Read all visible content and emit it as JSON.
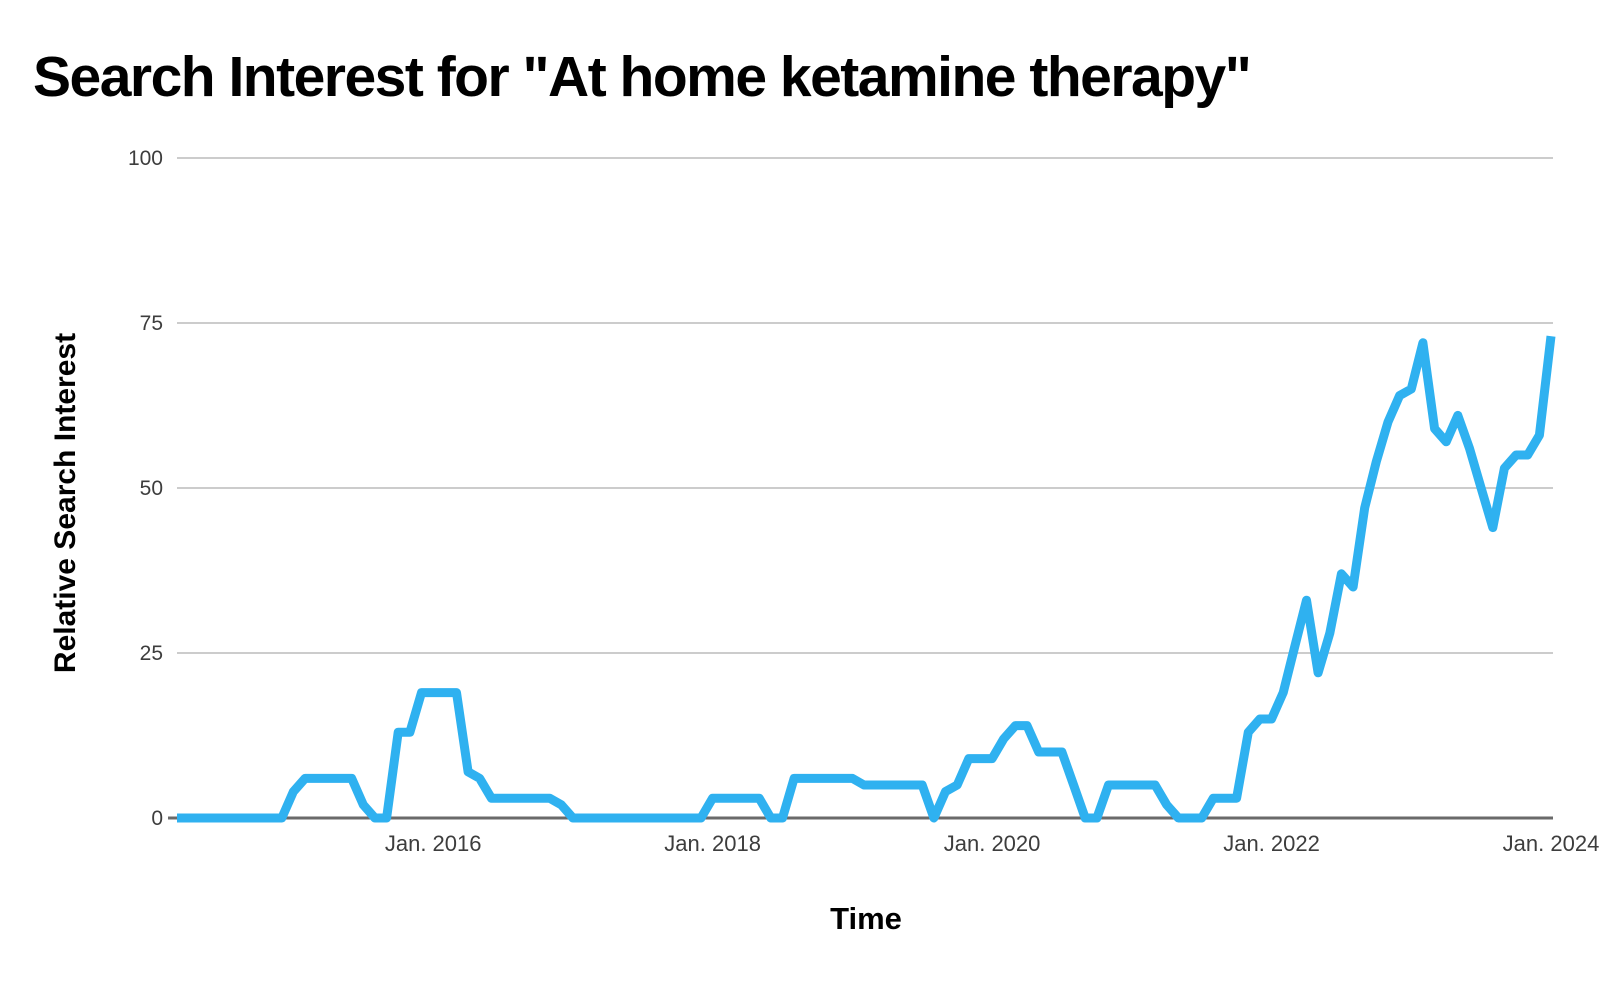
{
  "title": "Search Interest for \"At home ketamine therapy\"",
  "y_axis": {
    "label": "Relative Search Interest"
  },
  "x_axis": {
    "label": "Time"
  },
  "colors": {
    "line": "#2FB1F0",
    "gridline": "#cccccc",
    "axis_line": "#6a6a6a",
    "tick_label": "#3d3d3d",
    "text": "#000000",
    "background": "#ffffff"
  },
  "chart_data": {
    "type": "line",
    "title": "Search Interest for \"At home ketamine therapy\"",
    "xlabel": "Time",
    "ylabel": "Relative Search Interest",
    "ylim": [
      0,
      100
    ],
    "y_gridlines": [
      0,
      25,
      50,
      75,
      100
    ],
    "y_tick_labels": [
      "0",
      "25",
      "50",
      "75",
      "100"
    ],
    "grid": "horizontal-only",
    "legend": "none",
    "line_color": "#2FB1F0",
    "line_width": 9,
    "x_start": "2014-03",
    "x_end": "2024-01",
    "x_interval": "monthly",
    "x_ticks": [
      {
        "label": "Jan. 2016",
        "index": 22
      },
      {
        "label": "Jan. 2018",
        "index": 46
      },
      {
        "label": "Jan. 2020",
        "index": 70
      },
      {
        "label": "Jan. 2022",
        "index": 94
      },
      {
        "label": "Jan. 2024",
        "index": 118
      }
    ],
    "x": [
      "2014-03",
      "2014-04",
      "2014-05",
      "2014-06",
      "2014-07",
      "2014-08",
      "2014-09",
      "2014-10",
      "2014-11",
      "2014-12",
      "2015-01",
      "2015-02",
      "2015-03",
      "2015-04",
      "2015-05",
      "2015-06",
      "2015-07",
      "2015-08",
      "2015-09",
      "2015-10",
      "2015-11",
      "2015-12",
      "2016-01",
      "2016-02",
      "2016-03",
      "2016-04",
      "2016-05",
      "2016-06",
      "2016-07",
      "2016-08",
      "2016-09",
      "2016-10",
      "2016-11",
      "2016-12",
      "2017-01",
      "2017-02",
      "2017-03",
      "2017-04",
      "2017-05",
      "2017-06",
      "2017-07",
      "2017-08",
      "2017-09",
      "2017-10",
      "2017-11",
      "2017-12",
      "2018-01",
      "2018-02",
      "2018-03",
      "2018-04",
      "2018-05",
      "2018-06",
      "2018-07",
      "2018-08",
      "2018-09",
      "2018-10",
      "2018-11",
      "2018-12",
      "2019-01",
      "2019-02",
      "2019-03",
      "2019-04",
      "2019-05",
      "2019-06",
      "2019-07",
      "2019-08",
      "2019-09",
      "2019-10",
      "2019-11",
      "2019-12",
      "2020-01",
      "2020-02",
      "2020-03",
      "2020-04",
      "2020-05",
      "2020-06",
      "2020-07",
      "2020-08",
      "2020-09",
      "2020-10",
      "2020-11",
      "2020-12",
      "2021-01",
      "2021-02",
      "2021-03",
      "2021-04",
      "2021-05",
      "2021-06",
      "2021-07",
      "2021-08",
      "2021-09",
      "2021-10",
      "2021-11",
      "2021-12",
      "2022-01",
      "2022-02",
      "2022-03",
      "2022-04",
      "2022-05",
      "2022-06",
      "2022-07",
      "2022-08",
      "2022-09",
      "2022-10",
      "2022-11",
      "2022-12",
      "2023-01",
      "2023-02",
      "2023-03",
      "2023-04",
      "2023-05",
      "2023-06",
      "2023-07",
      "2023-08",
      "2023-09",
      "2023-10",
      "2023-11",
      "2023-12",
      "2024-01"
    ],
    "values": [
      0,
      0,
      0,
      0,
      0,
      0,
      0,
      0,
      0,
      0,
      4,
      6,
      6,
      6,
      6,
      6,
      2,
      0,
      0,
      13,
      13,
      19,
      19,
      19,
      19,
      7,
      6,
      3,
      3,
      3,
      3,
      3,
      3,
      2,
      0,
      0,
      0,
      0,
      0,
      0,
      0,
      0,
      0,
      0,
      0,
      0,
      3,
      3,
      3,
      3,
      3,
      0,
      0,
      6,
      6,
      6,
      6,
      6,
      6,
      5,
      5,
      5,
      5,
      5,
      5,
      0,
      4,
      5,
      9,
      9,
      9,
      12,
      14,
      14,
      10,
      10,
      10,
      5,
      0,
      0,
      5,
      5,
      5,
      5,
      5,
      2,
      0,
      0,
      0,
      3,
      3,
      3,
      13,
      15,
      15,
      19,
      26,
      33,
      22,
      28,
      37,
      35,
      47,
      54,
      60,
      64,
      65,
      72,
      59,
      57,
      61,
      56,
      50,
      44,
      53,
      55,
      55,
      58,
      73
    ]
  }
}
